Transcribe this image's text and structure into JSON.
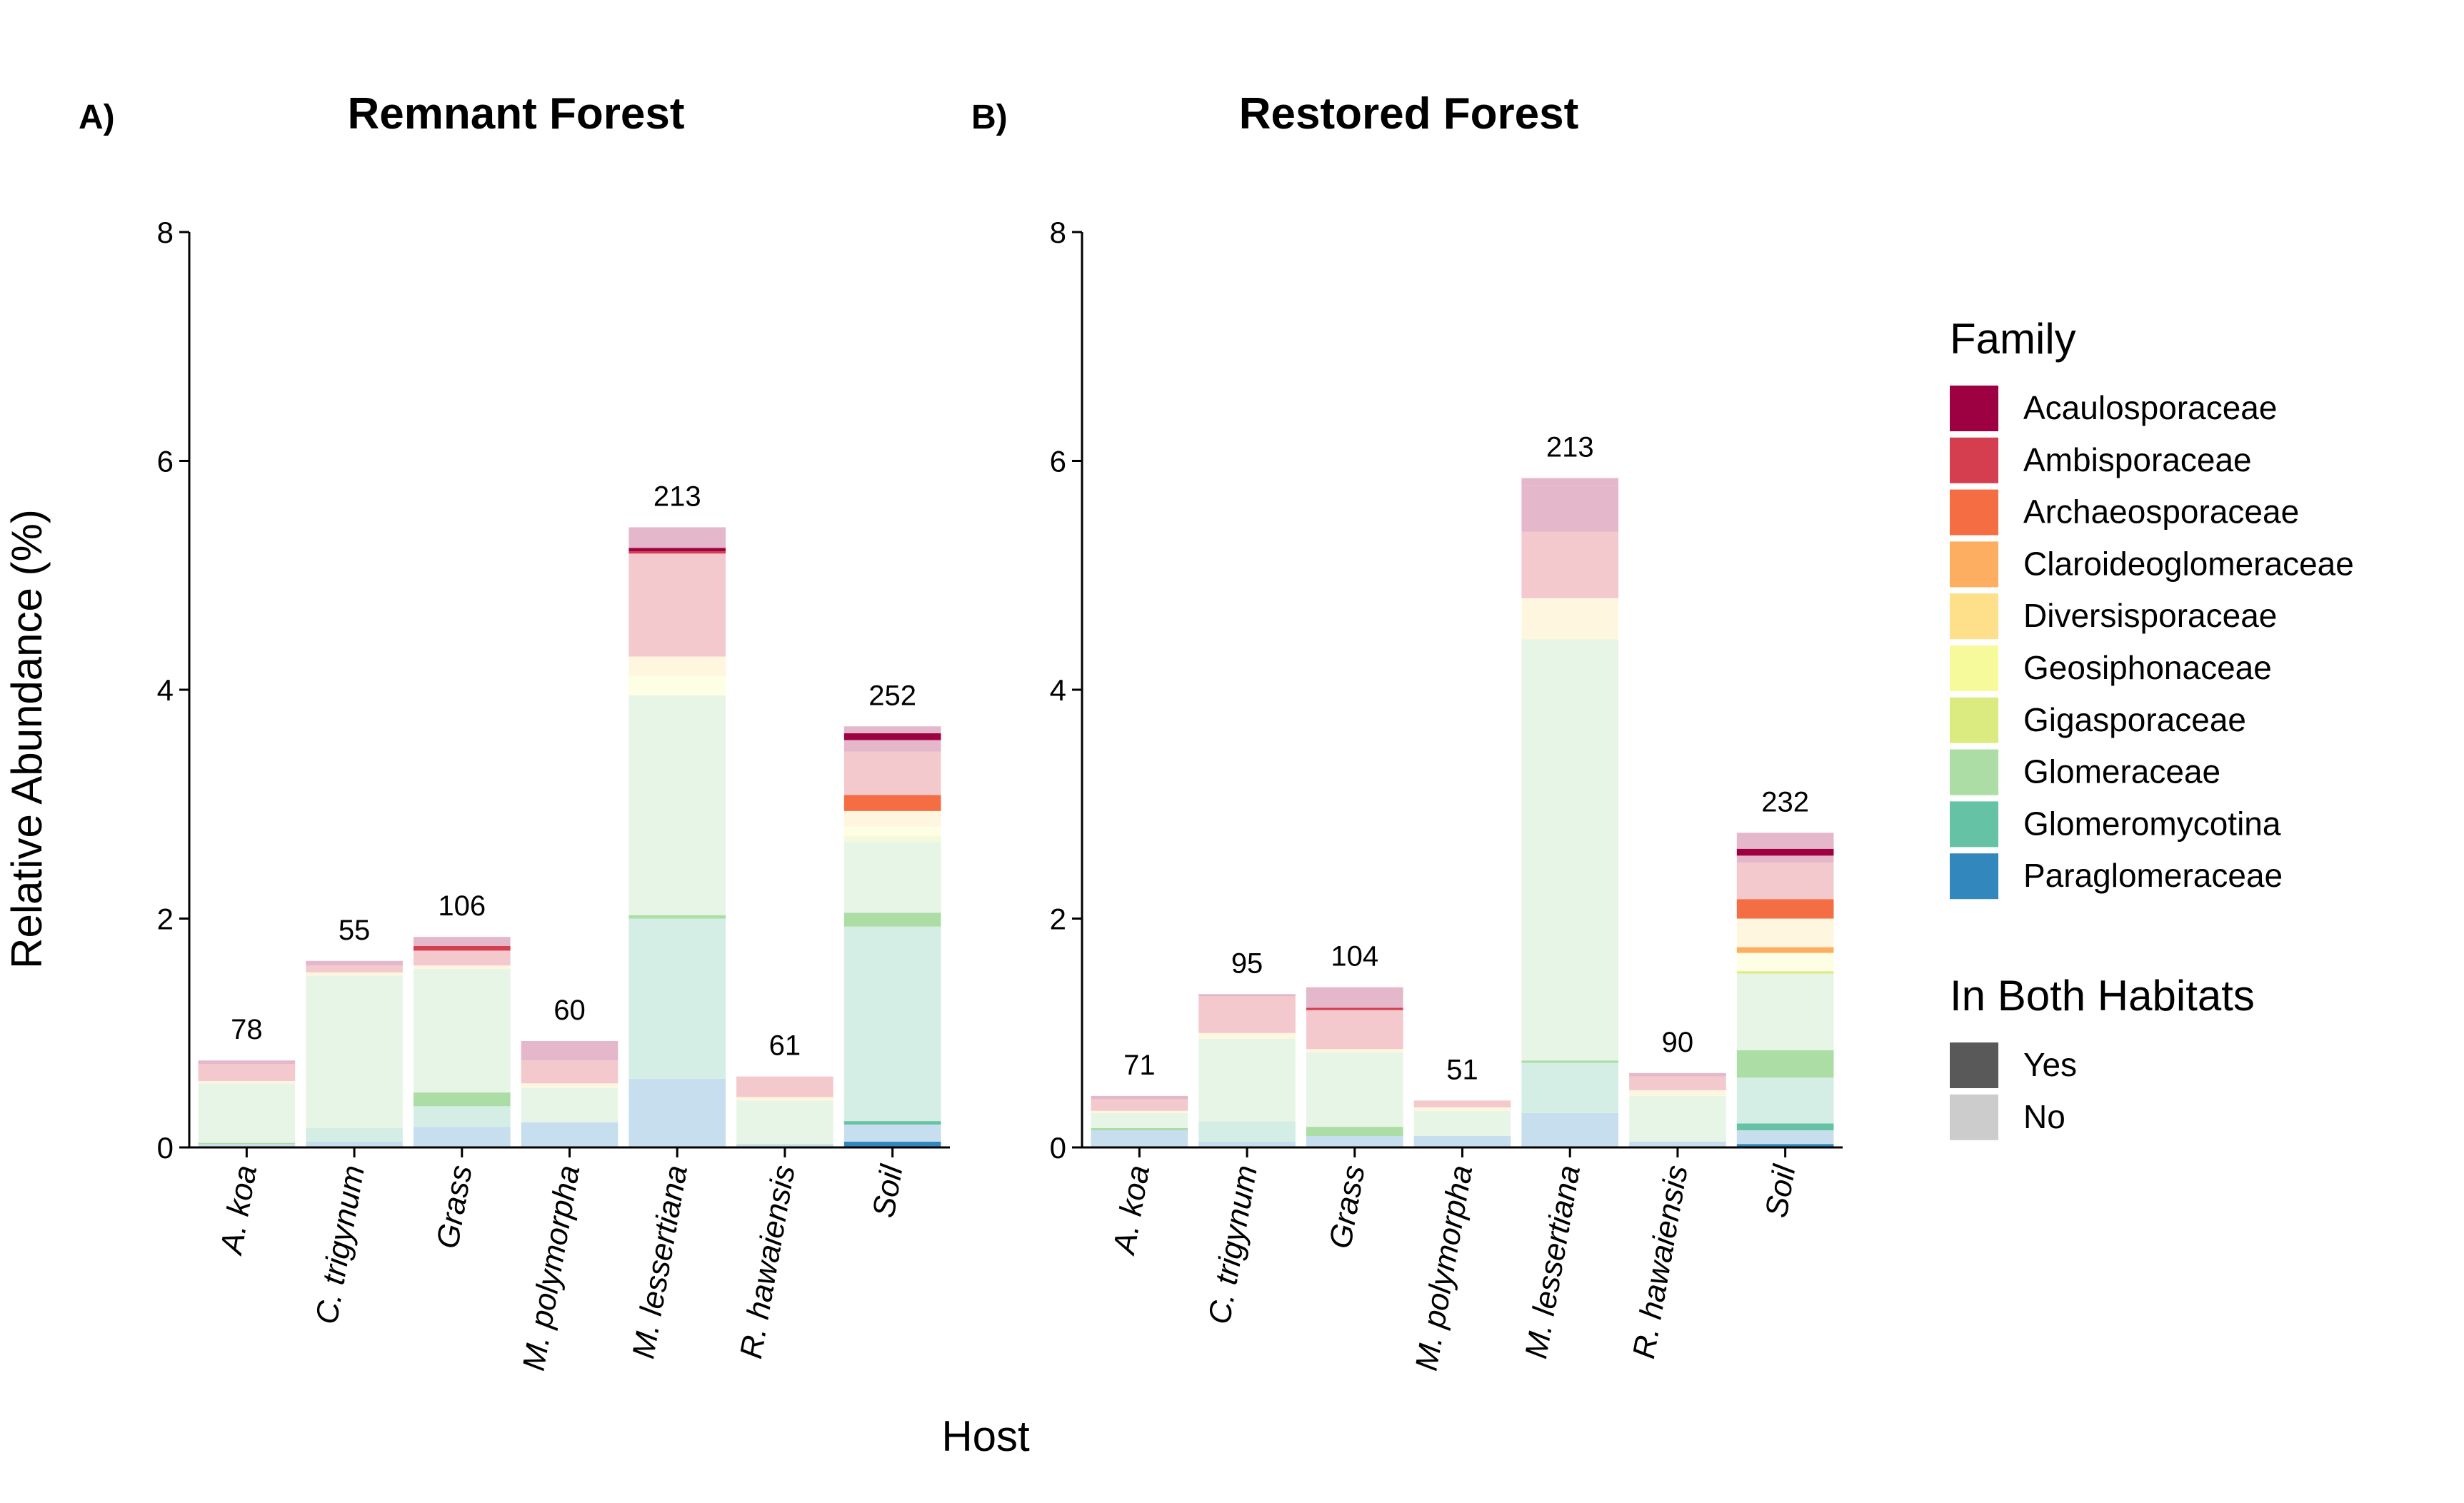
{
  "chart_data": {
    "type": "bar",
    "stacked": true,
    "ylabel": "Relative Abundance (%)",
    "xlabel": "Host",
    "ylim": [
      0,
      8
    ],
    "yticks": [
      0,
      2,
      4,
      6,
      8
    ],
    "families": [
      {
        "name": "Acaulosporaceae",
        "color": "#9E0142"
      },
      {
        "name": "Ambisporaceae",
        "color": "#D53E4F"
      },
      {
        "name": "Archaeosporaceae",
        "color": "#F46D43"
      },
      {
        "name": "Claroideoglomeraceae",
        "color": "#FDAE61"
      },
      {
        "name": "Diversisporaceae",
        "color": "#FEE08B"
      },
      {
        "name": "Geosiphonaceae",
        "color": "#F7FA9B"
      },
      {
        "name": "Gigasporaceae",
        "color": "#DCEB80"
      },
      {
        "name": "Glomeraceae",
        "color": "#ABDDA4"
      },
      {
        "name": "Glomeromycotina",
        "color": "#66C2A5"
      },
      {
        "name": "Paraglomeraceae",
        "color": "#3288BD"
      }
    ],
    "legend": {
      "family_title": "Family",
      "habitat_title": "In Both Habitats",
      "habitat_items": [
        {
          "label": "Yes",
          "color": "#595959"
        },
        {
          "label": "No",
          "color": "#CCCCCC"
        }
      ]
    },
    "panels": [
      {
        "tag": "A)",
        "title": "Remnant Forest",
        "categories": [
          "A. koa",
          "C. trigynum",
          "Grass",
          "M. polymorpha",
          "M. lessertiana",
          "R. hawaiensis",
          "Soil"
        ],
        "counts": [
          "78",
          "55",
          "106",
          "60",
          "213",
          "61",
          "252"
        ],
        "segments": [
          [
            [
              "Paraglomeraceae",
              "No",
              0.03
            ],
            [
              "Glomeraceae",
              "Yes",
              0.01
            ],
            [
              "Glomeraceae",
              "No",
              0.52
            ],
            [
              "Diversisporaceae",
              "No",
              0.02
            ],
            [
              "Ambisporaceae",
              "No",
              0.15
            ],
            [
              "Acaulosporaceae",
              "No",
              0.03
            ]
          ],
          [
            [
              "Paraglomeraceae",
              "No",
              0.05
            ],
            [
              "Glomeromycotina",
              "No",
              0.12
            ],
            [
              "Glomeraceae",
              "No",
              1.33
            ],
            [
              "Diversisporaceae",
              "No",
              0.03
            ],
            [
              "Ambisporaceae",
              "No",
              0.06
            ],
            [
              "Acaulosporaceae",
              "No",
              0.04
            ]
          ],
          [
            [
              "Paraglomeraceae",
              "No",
              0.18
            ],
            [
              "Glomeromycotina",
              "No",
              0.18
            ],
            [
              "Glomeraceae",
              "Yes",
              0.12
            ],
            [
              "Glomeraceae",
              "No",
              1.08
            ],
            [
              "Diversisporaceae",
              "No",
              0.03
            ],
            [
              "Ambisporaceae",
              "No",
              0.13
            ],
            [
              "Ambisporaceae",
              "Yes",
              0.04
            ],
            [
              "Acaulosporaceae",
              "No",
              0.08
            ]
          ],
          [
            [
              "Paraglomeraceae",
              "No",
              0.22
            ],
            [
              "Glomeraceae",
              "No",
              0.3
            ],
            [
              "Diversisporaceae",
              "No",
              0.04
            ],
            [
              "Ambisporaceae",
              "No",
              0.2
            ],
            [
              "Acaulosporaceae",
              "No",
              0.17
            ]
          ],
          [
            [
              "Paraglomeraceae",
              "No",
              0.6
            ],
            [
              "Glomeromycotina",
              "No",
              1.4
            ],
            [
              "Glomeraceae",
              "Yes",
              0.03
            ],
            [
              "Glomeraceae",
              "No",
              1.92
            ],
            [
              "Geosiphonaceae",
              "No",
              0.17
            ],
            [
              "Diversisporaceae",
              "No",
              0.17
            ],
            [
              "Ambisporaceae",
              "No",
              0.9
            ],
            [
              "Ambisporaceae",
              "Yes",
              0.02
            ],
            [
              "Acaulosporaceae",
              "Yes",
              0.03
            ],
            [
              "Acaulosporaceae",
              "No",
              0.18
            ]
          ],
          [
            [
              "Paraglomeraceae",
              "No",
              0.03
            ],
            [
              "Glomeraceae",
              "No",
              0.38
            ],
            [
              "Diversisporaceae",
              "No",
              0.03
            ],
            [
              "Ambisporaceae",
              "No",
              0.18
            ]
          ],
          [
            [
              "Paraglomeraceae",
              "Yes",
              0.05
            ],
            [
              "Paraglomeraceae",
              "No",
              0.15
            ],
            [
              "Glomeromycotina",
              "Yes",
              0.03
            ],
            [
              "Glomeromycotina",
              "No",
              1.7
            ],
            [
              "Glomeraceae",
              "Yes",
              0.12
            ],
            [
              "Glomeraceae",
              "No",
              0.62
            ],
            [
              "Gigasporaceae",
              "No",
              0.05
            ],
            [
              "Geosiphonaceae",
              "No",
              0.08
            ],
            [
              "Diversisporaceae",
              "No",
              0.14
            ],
            [
              "Archaeosporaceae",
              "Yes",
              0.14
            ],
            [
              "Ambisporaceae",
              "No",
              0.38
            ],
            [
              "Acaulosporaceae",
              "No",
              0.1
            ],
            [
              "Acaulosporaceae",
              "Yes",
              0.06
            ],
            [
              "Acaulosporaceae",
              "No",
              0.06
            ]
          ]
        ]
      },
      {
        "tag": "B)",
        "title": "Restored Forest",
        "categories": [
          "A. koa",
          "C. trigynum",
          "Grass",
          "M. polymorpha",
          "M. lessertiana",
          "R. hawaiensis",
          "Soil"
        ],
        "counts": [
          "71",
          "95",
          "104",
          "51",
          "213",
          "90",
          "232"
        ],
        "segments": [
          [
            [
              "Paraglomeraceae",
              "No",
              0.15
            ],
            [
              "Glomeraceae",
              "Yes",
              0.02
            ],
            [
              "Glomeraceae",
              "No",
              0.13
            ],
            [
              "Diversisporaceae",
              "No",
              0.02
            ],
            [
              "Ambisporaceae",
              "No",
              0.1
            ],
            [
              "Acaulosporaceae",
              "No",
              0.03
            ]
          ],
          [
            [
              "Paraglomeraceae",
              "No",
              0.05
            ],
            [
              "Glomeromycotina",
              "No",
              0.18
            ],
            [
              "Glomeraceae",
              "No",
              0.72
            ],
            [
              "Diversisporaceae",
              "No",
              0.05
            ],
            [
              "Ambisporaceae",
              "No",
              0.32
            ],
            [
              "Acaulosporaceae",
              "No",
              0.02
            ]
          ],
          [
            [
              "Paraglomeraceae",
              "No",
              0.1
            ],
            [
              "Glomeraceae",
              "Yes",
              0.08
            ],
            [
              "Glomeraceae",
              "No",
              0.65
            ],
            [
              "Diversisporaceae",
              "No",
              0.03
            ],
            [
              "Ambisporaceae",
              "No",
              0.34
            ],
            [
              "Ambisporaceae",
              "Yes",
              0.02
            ],
            [
              "Acaulosporaceae",
              "No",
              0.18
            ]
          ],
          [
            [
              "Paraglomeraceae",
              "No",
              0.1
            ],
            [
              "Glomeraceae",
              "No",
              0.22
            ],
            [
              "Diversisporaceae",
              "No",
              0.03
            ],
            [
              "Ambisporaceae",
              "No",
              0.06
            ]
          ],
          [
            [
              "Paraglomeraceae",
              "No",
              0.3
            ],
            [
              "Glomeromycotina",
              "No",
              0.44
            ],
            [
              "Glomeraceae",
              "Yes",
              0.02
            ],
            [
              "Glomeraceae",
              "No",
              3.68
            ],
            [
              "Diversisporaceae",
              "No",
              0.36
            ],
            [
              "Ambisporaceae",
              "No",
              0.58
            ],
            [
              "Acaulosporaceae",
              "No",
              0.4
            ],
            [
              "Acaulosporaceae",
              "No",
              0.07
            ]
          ],
          [
            [
              "Paraglomeraceae",
              "No",
              0.05
            ],
            [
              "Glomeraceae",
              "No",
              0.4
            ],
            [
              "Diversisporaceae",
              "No",
              0.05
            ],
            [
              "Ambisporaceae",
              "No",
              0.12
            ],
            [
              "Acaulosporaceae",
              "No",
              0.03
            ]
          ],
          [
            [
              "Paraglomeraceae",
              "Yes",
              0.03
            ],
            [
              "Paraglomeraceae",
              "No",
              0.12
            ],
            [
              "Glomeromycotina",
              "Yes",
              0.06
            ],
            [
              "Glomeromycotina",
              "No",
              0.4
            ],
            [
              "Glomeraceae",
              "Yes",
              0.24
            ],
            [
              "Glomeraceae",
              "No",
              0.67
            ],
            [
              "Gigasporaceae",
              "Yes",
              0.02
            ],
            [
              "Geosiphonaceae",
              "No",
              0.16
            ],
            [
              "Claroideoglomeraceae",
              "Yes",
              0.05
            ],
            [
              "Diversisporaceae",
              "No",
              0.25
            ],
            [
              "Archaeosporaceae",
              "Yes",
              0.17
            ],
            [
              "Ambisporaceae",
              "No",
              0.32
            ],
            [
              "Acaulosporaceae",
              "No",
              0.06
            ],
            [
              "Acaulosporaceae",
              "Yes",
              0.06
            ],
            [
              "Acaulosporaceae",
              "No",
              0.14
            ]
          ]
        ]
      }
    ]
  }
}
